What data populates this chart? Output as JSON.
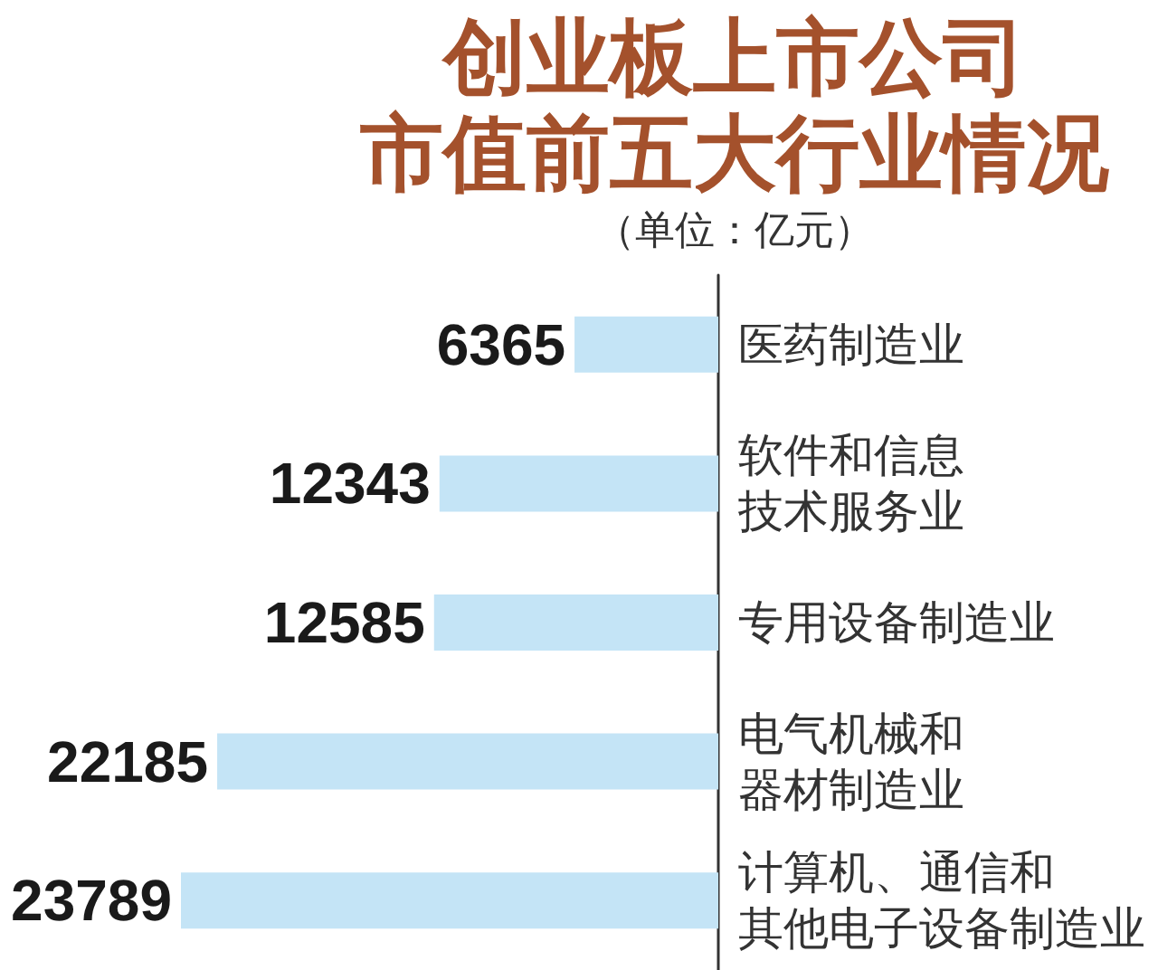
{
  "chart_data": {
    "type": "bar",
    "title": "创业板上市公司市值前五大行业情况",
    "subtitle": "（单位：亿元）",
    "categories": [
      "医药制造业",
      "软件和信息技术服务业",
      "专用设备制造业",
      "电气机械和器材制造业",
      "计算机、通信和其他电子设备制造业"
    ],
    "values": [
      6365,
      12343,
      12585,
      22185,
      23789
    ],
    "color": "#c4e4f6",
    "orientation": "horizontal",
    "data_labels": true
  }
}
